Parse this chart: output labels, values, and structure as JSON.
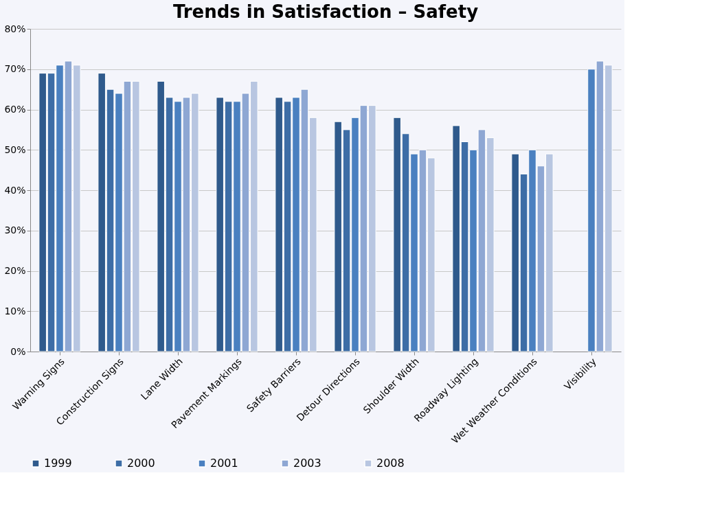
{
  "chart_data": {
    "type": "bar",
    "title": "Trends in Satisfaction – Safety",
    "categories": [
      "Warning Signs",
      "Construction Signs",
      "Lane Width",
      "Pavement Markings",
      "Safety Barriers",
      "Detour Directions",
      "Shoulder Width",
      "Roadway Lighting",
      "Wet Weather Conditions",
      "Visibility"
    ],
    "series": [
      {
        "name": "1999",
        "color": "#2f5a8c",
        "values": [
          69,
          69,
          67,
          63,
          63,
          57,
          58,
          56,
          49,
          null
        ]
      },
      {
        "name": "2000",
        "color": "#3d6da6",
        "values": [
          69,
          65,
          63,
          62,
          62,
          55,
          54,
          52,
          44,
          null
        ]
      },
      {
        "name": "2001",
        "color": "#4a80c0",
        "values": [
          71,
          64,
          62,
          62,
          63,
          58,
          49,
          50,
          50,
          70
        ]
      },
      {
        "name": "2003",
        "color": "#8ea7d3",
        "values": [
          72,
          67,
          63,
          64,
          65,
          61,
          50,
          55,
          46,
          72
        ]
      },
      {
        "name": "2008",
        "color": "#b8c6e1",
        "values": [
          71,
          67,
          64,
          67,
          58,
          61,
          48,
          53,
          49,
          71
        ]
      }
    ],
    "ylim": [
      0,
      80
    ],
    "yticks": [
      {
        "value": 0,
        "label": "0%"
      },
      {
        "value": 10,
        "label": "10%"
      },
      {
        "value": 20,
        "label": "20%"
      },
      {
        "value": 30,
        "label": "30%"
      },
      {
        "value": 40,
        "label": "40%"
      },
      {
        "value": 50,
        "label": "50%"
      },
      {
        "value": 60,
        "label": "60%"
      },
      {
        "value": 70,
        "label": "70%"
      },
      {
        "value": 80,
        "label": "80%"
      }
    ],
    "grid": "y",
    "legend": "bottom"
  }
}
